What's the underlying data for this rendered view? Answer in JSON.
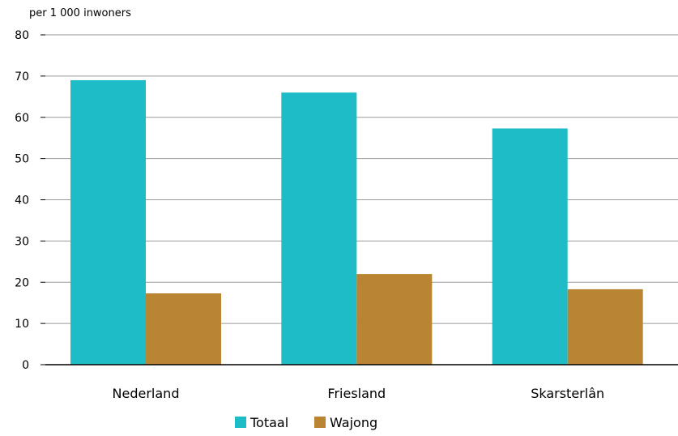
{
  "chart_data": {
    "type": "bar",
    "title": "",
    "unit_label": "per 1 000 inwoners",
    "xlabel": "",
    "ylabel": "",
    "categories": [
      "Nederland",
      "Friesland",
      "Skarsterlân"
    ],
    "series": [
      {
        "name": "Totaal",
        "values": [
          69,
          66,
          57.3
        ],
        "color": "#1ebcc7"
      },
      {
        "name": "Wajong",
        "values": [
          17.3,
          22,
          18.3
        ],
        "color": "#b98533"
      }
    ],
    "ylim": [
      0,
      80
    ],
    "yticks": [
      0,
      10,
      20,
      30,
      40,
      50,
      60,
      70,
      80
    ],
    "grid": true,
    "legend_position": "bottom-center"
  }
}
